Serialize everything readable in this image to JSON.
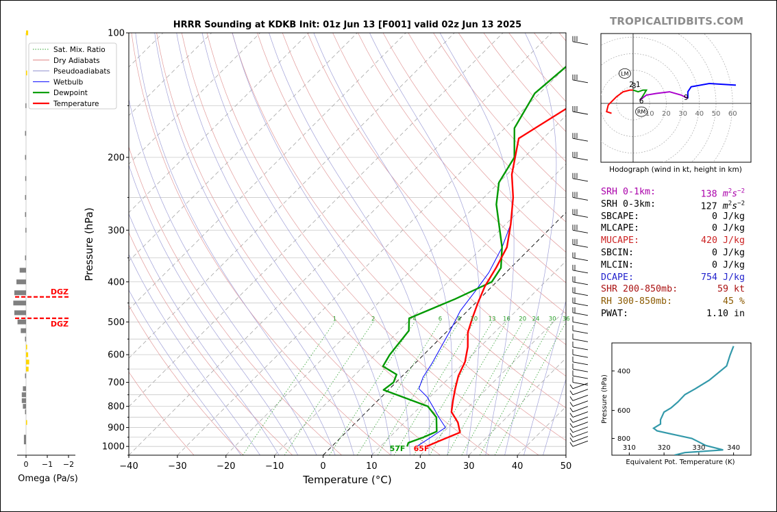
{
  "title": "HRRR Sounding at KDKB Init: 01z Jun 13 [F001] valid 02z Jun 13 2025",
  "brand": "TROPICALTIDBITS.COM",
  "chart_data": {
    "type": "line",
    "title": "HRRR Sounding at KDKB Init: 01z Jun 13 [F001] valid 02z Jun 13 2025",
    "xlabel": "Temperature (°C)",
    "ylabel": "Pressure (hPa)",
    "xlim": [
      -40,
      50
    ],
    "ylim": [
      1050,
      100
    ],
    "x_ticks": [
      -40,
      -30,
      -20,
      -10,
      0,
      10,
      20,
      30,
      40,
      50
    ],
    "y_ticks": [
      100,
      200,
      300,
      400,
      500,
      600,
      700,
      800,
      900,
      1000
    ],
    "log_scale_y": true,
    "skew": true,
    "legend": {
      "placement": "upper-left",
      "entries": [
        {
          "name": "Sat. Mix. Ratio",
          "color": "#2ca02c",
          "style": "dotted"
        },
        {
          "name": "Dry Adiabats",
          "color": "#e08080",
          "style": "solid"
        },
        {
          "name": "Pseudoadiabats",
          "color": "#9090d0",
          "style": "solid"
        },
        {
          "name": "Wetbulb",
          "color": "#0000ff",
          "style": "solid"
        },
        {
          "name": "Dewpoint",
          "color": "#009900",
          "style": "solid"
        },
        {
          "name": "Temperature",
          "color": "#ff0000",
          "style": "solid"
        }
      ]
    },
    "series": [
      {
        "name": "Temperature",
        "color": "#ff0000",
        "points": [
          [
            19.5,
            1000
          ],
          [
            21,
            970
          ],
          [
            23.5,
            925
          ],
          [
            21,
            875
          ],
          [
            17.5,
            825
          ],
          [
            15.5,
            775
          ],
          [
            13.5,
            725
          ],
          [
            11.5,
            675
          ],
          [
            10,
            625
          ],
          [
            7.5,
            575
          ],
          [
            4.5,
            530
          ],
          [
            2.5,
            490
          ],
          [
            0.5,
            450
          ],
          [
            -1.5,
            410
          ],
          [
            -3,
            370
          ],
          [
            -5,
            330
          ],
          [
            -9,
            290
          ],
          [
            -14,
            250
          ],
          [
            -19,
            220
          ],
          [
            -25,
            180
          ],
          [
            -21,
            150
          ],
          [
            -14,
            125
          ],
          [
            -6,
            105
          ],
          [
            1,
            95
          ]
        ]
      },
      {
        "name": "Dewpoint",
        "color": "#009900",
        "points": [
          [
            15.5,
            1000
          ],
          [
            15,
            980
          ],
          [
            17,
            950
          ],
          [
            18.5,
            920
          ],
          [
            15.5,
            850
          ],
          [
            11.5,
            800
          ],
          [
            -1,
            730
          ],
          [
            -0.5,
            700
          ],
          [
            -1.5,
            670
          ],
          [
            -6,
            640
          ],
          [
            -7,
            600
          ],
          [
            -8,
            525
          ],
          [
            -10.5,
            490
          ],
          [
            -5,
            440
          ],
          [
            -1,
            400
          ],
          [
            -2,
            370
          ],
          [
            -6,
            330
          ],
          [
            -10,
            300
          ],
          [
            -16,
            260
          ],
          [
            -20,
            230
          ],
          [
            -22,
            200
          ],
          [
            -28,
            170
          ],
          [
            -31,
            140
          ],
          [
            -30,
            120
          ],
          [
            -27,
            95
          ]
        ]
      },
      {
        "name": "Wetbulb",
        "color": "#0000ff",
        "points": [
          [
            17.5,
            1000
          ],
          [
            18.5,
            950
          ],
          [
            19.5,
            900
          ],
          [
            16,
            850
          ],
          [
            12.5,
            800
          ],
          [
            9.5,
            760
          ],
          [
            6,
            725
          ],
          [
            4.5,
            680
          ],
          [
            3.5,
            630
          ],
          [
            2,
            575
          ],
          [
            0.5,
            525
          ],
          [
            -1.5,
            470
          ],
          [
            -2.5,
            420
          ],
          [
            -3.5,
            380
          ],
          [
            -6,
            330
          ],
          [
            -9,
            290
          ],
          [
            -14,
            250
          ],
          [
            -19,
            220
          ],
          [
            -25,
            180
          ],
          [
            -21,
            150
          ],
          [
            -14,
            125
          ],
          [
            -6,
            105
          ],
          [
            1,
            95
          ]
        ]
      }
    ],
    "annotations": [
      {
        "text": "57F",
        "color": "#009900"
      },
      {
        "text": "65F",
        "color": "#ff0000"
      }
    ],
    "mixing_ratio_labels": [
      "1",
      "2",
      "4",
      "6",
      "8",
      "10",
      "13",
      "16",
      "20",
      "24",
      "30",
      "36"
    ],
    "mixing_ratio_values": [
      1,
      2,
      4,
      6,
      8,
      10,
      13,
      16,
      20,
      24,
      30,
      36
    ],
    "wind_barbs_pressures": [
      105,
      130,
      155,
      180,
      200,
      225,
      250,
      275,
      300,
      325,
      350,
      375,
      400,
      425,
      450,
      475,
      500,
      525,
      550,
      575,
      600,
      625,
      650,
      675,
      700,
      725,
      750,
      775,
      800,
      825,
      850,
      875,
      900,
      925,
      950,
      975,
      1000
    ]
  },
  "omega_panel": {
    "xlabel": "Omega (Pa/s)",
    "x_ticks": [
      "0",
      "−1",
      "−2"
    ],
    "dgz_label": "DGZ",
    "dgz_bounds_hpa": [
      435,
      490
    ],
    "bars": [
      {
        "p": 100,
        "v": -0.1
      },
      {
        "p": 125,
        "v": -0.05
      },
      {
        "p": 150,
        "v": 0.03
      },
      {
        "p": 175,
        "v": 0.05
      },
      {
        "p": 200,
        "v": 0.05
      },
      {
        "p": 225,
        "v": 0.04
      },
      {
        "p": 250,
        "v": 0.05
      },
      {
        "p": 275,
        "v": 0.05
      },
      {
        "p": 300,
        "v": 0.03
      },
      {
        "p": 350,
        "v": 0.05
      },
      {
        "p": 375,
        "v": 0.3
      },
      {
        "p": 400,
        "v": 0.45
      },
      {
        "p": 425,
        "v": 0.55
      },
      {
        "p": 450,
        "v": 0.6
      },
      {
        "p": 475,
        "v": 0.55
      },
      {
        "p": 500,
        "v": 0.4
      },
      {
        "p": 525,
        "v": 0.25
      },
      {
        "p": 550,
        "v": 0.05
      },
      {
        "p": 575,
        "v": -0.05
      },
      {
        "p": 600,
        "v": -0.1
      },
      {
        "p": 625,
        "v": -0.15
      },
      {
        "p": 650,
        "v": -0.12
      },
      {
        "p": 675,
        "v": 0.05
      },
      {
        "p": 725,
        "v": 0.15
      },
      {
        "p": 750,
        "v": 0.2
      },
      {
        "p": 775,
        "v": 0.2
      },
      {
        "p": 800,
        "v": 0.15
      },
      {
        "p": 825,
        "v": 0.05
      },
      {
        "p": 875,
        "v": -0.05
      },
      {
        "p": 950,
        "v": 0.1
      },
      {
        "p": 975,
        "v": 0.1
      }
    ]
  },
  "hodograph": {
    "caption": "Hodograph (wind in kt, height in km)",
    "ring_labels": [
      "10",
      "20",
      "30",
      "40",
      "50",
      "60"
    ],
    "ring_values": [
      10,
      20,
      30,
      40,
      50,
      60
    ],
    "markers": [
      {
        "label": "LM",
        "u": -5,
        "v": 18
      },
      {
        "label": "RM",
        "u": 5,
        "v": -5
      }
    ],
    "height_labels": [
      {
        "text": "2",
        "u": -1,
        "v": 10
      },
      {
        "text": "3",
        "u": 0.5,
        "v": 9
      },
      {
        "text": "1",
        "u": 3,
        "v": 10
      },
      {
        "text": "6",
        "u": 5,
        "v": 0
      },
      {
        "text": "9",
        "u": 32,
        "v": 2
      }
    ],
    "segments": [
      {
        "color": "#ff0000",
        "points": [
          [
            -13,
            -6
          ],
          [
            -16,
            -5
          ],
          [
            -15,
            -1
          ],
          [
            -10,
            4
          ],
          [
            -6,
            7
          ],
          [
            -2,
            8
          ],
          [
            0,
            8
          ]
        ]
      },
      {
        "color": "#009900",
        "points": [
          [
            0,
            8
          ],
          [
            3,
            7
          ],
          [
            6,
            8
          ],
          [
            8,
            8
          ],
          [
            5,
            3
          ],
          [
            4,
            2
          ]
        ]
      },
      {
        "color": "#aa00cc",
        "points": [
          [
            4,
            2
          ],
          [
            8,
            5
          ],
          [
            14,
            6
          ],
          [
            22,
            7
          ],
          [
            29,
            5
          ],
          [
            33,
            3
          ]
        ]
      },
      {
        "color": "#0000ff",
        "points": [
          [
            33,
            3
          ],
          [
            33,
            7
          ],
          [
            35,
            10
          ],
          [
            46,
            12
          ],
          [
            62,
            11
          ]
        ]
      }
    ]
  },
  "stats": [
    {
      "label": "SRH 0-1km:",
      "value": "138",
      "unit": "m2s-2",
      "color": "#aa00aa"
    },
    {
      "label": "SRH 0-3km:",
      "value": "127",
      "unit": "m2s-2",
      "color": "#000000"
    },
    {
      "label": "SBCAPE:",
      "value": "0 J/kg",
      "color": "#000000"
    },
    {
      "label": "MLCAPE:",
      "value": "0 J/kg",
      "color": "#000000"
    },
    {
      "label": "MUCAPE:",
      "value": "420 J/kg",
      "color": "#cc2222"
    },
    {
      "label": "SBCIN:",
      "value": "0 J/kg",
      "color": "#000000"
    },
    {
      "label": "MLCIN:",
      "value": "0 J/kg",
      "color": "#000000"
    },
    {
      "label": "DCAPE:",
      "value": "754 J/kg",
      "color": "#2222cc"
    },
    {
      "label": "SHR 200-850mb:",
      "value": "59 kt",
      "color": "#aa1111"
    },
    {
      "label": "RH 300-850mb:",
      "value": "45 %",
      "color": "#8b5a00"
    },
    {
      "label": "PWAT:",
      "value": "1.10 in",
      "color": "#000000"
    }
  ],
  "theta_e_panel": {
    "xlabel": "Equivalent Pot. Temperature (K)",
    "ylabel": "Pressure (hPa)",
    "x_ticks": [
      310,
      320,
      330,
      340
    ],
    "y_ticks": [
      400,
      600,
      800
    ],
    "xlim": [
      305,
      345
    ],
    "ylim": [
      950,
      300
    ],
    "color": "#3399aa",
    "points": [
      [
        323,
        950
      ],
      [
        326,
        925
      ],
      [
        337,
        900
      ],
      [
        332,
        860
      ],
      [
        328,
        800
      ],
      [
        323,
        770
      ],
      [
        318,
        740
      ],
      [
        317,
        720
      ],
      [
        319,
        690
      ],
      [
        319,
        660
      ],
      [
        320,
        610
      ],
      [
        322,
        585
      ],
      [
        324,
        550
      ],
      [
        326,
        510
      ],
      [
        329,
        480
      ],
      [
        333,
        440
      ],
      [
        338,
        380
      ],
      [
        339,
        340
      ],
      [
        340,
        310
      ]
    ]
  }
}
